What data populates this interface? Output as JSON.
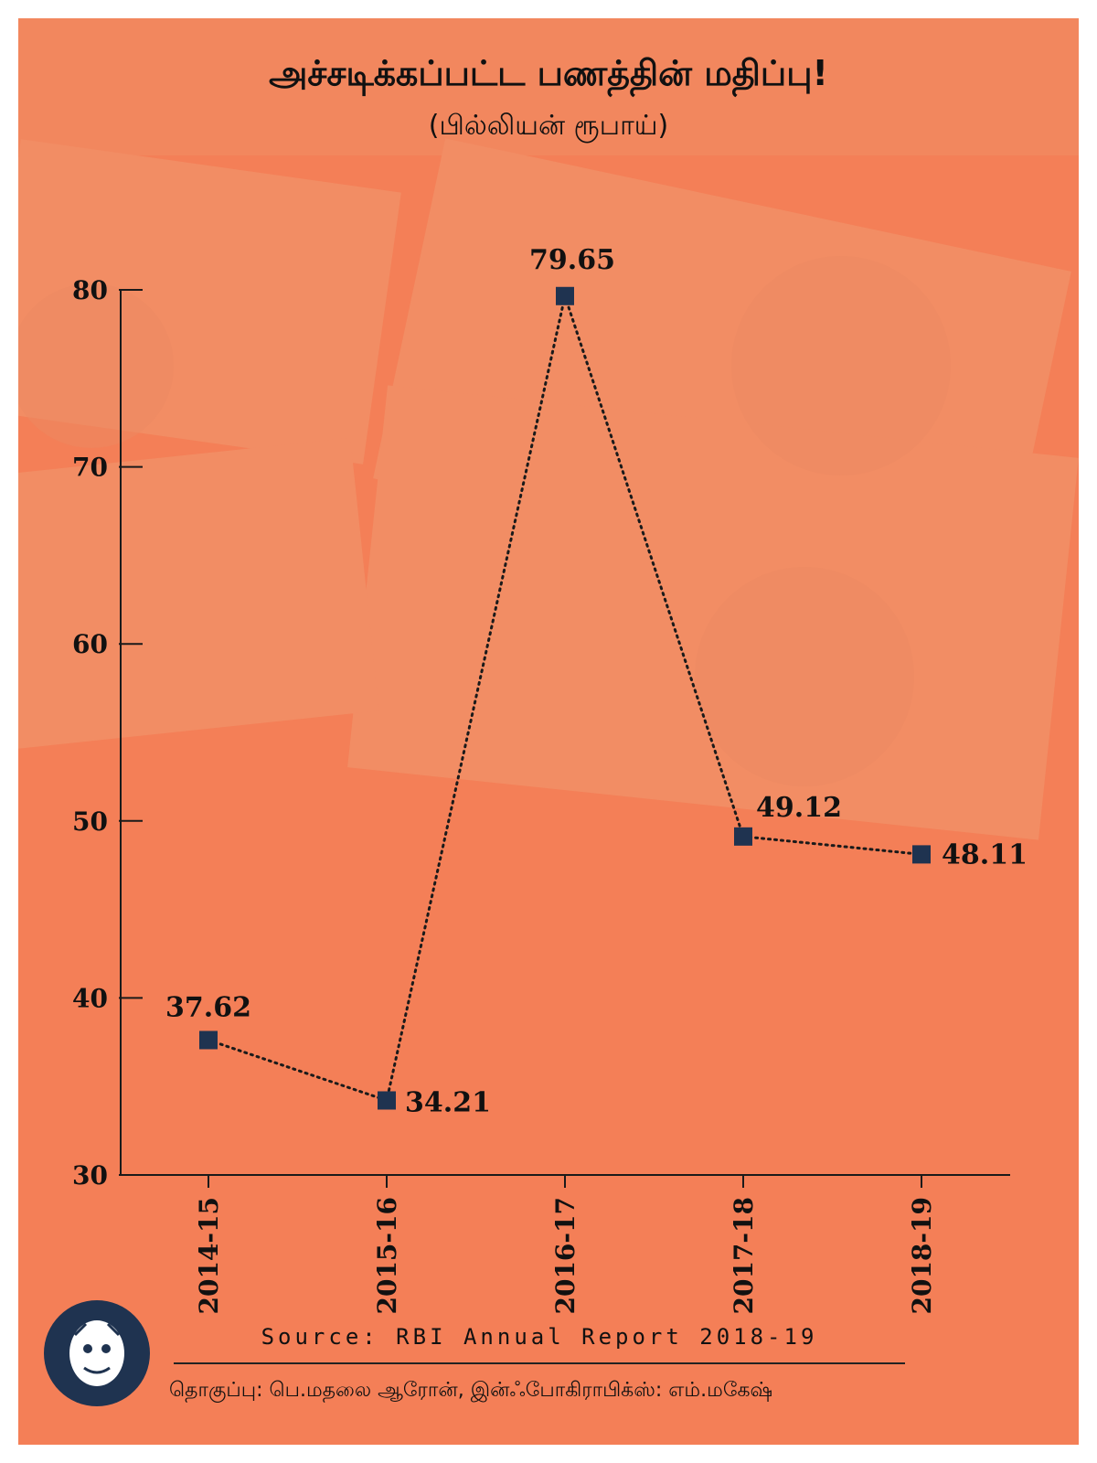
{
  "header": {
    "title": "அச்சடிக்கப்பட்ட பணத்தின் மதிப்பு!",
    "subtitle": "(பில்லியன் ரூபாய்)"
  },
  "footer": {
    "source": "Source: RBI Annual Report 2018-19",
    "credits": "தொகுப்பு: பெ.மதலை ஆரோன், இன்ஃபோகிராபிக்ஸ்: எம்.மகேஷ்"
  },
  "colors": {
    "background": "#f47f57",
    "marker": "#1f3350",
    "axis": "#1a1a1a",
    "logo": "#1f3350"
  },
  "chart_data": {
    "type": "line",
    "categories": [
      "2014-15",
      "2015-16",
      "2016-17",
      "2017-18",
      "2018-19"
    ],
    "values": [
      37.62,
      34.21,
      79.65,
      49.12,
      48.11
    ],
    "data_labels": [
      "37.62",
      "34.21",
      "79.65",
      "49.12",
      "48.11"
    ],
    "yticks": [
      30,
      40,
      50,
      60,
      70,
      80
    ],
    "ylim": [
      30,
      80
    ],
    "line_style": "dotted",
    "marker": "square",
    "grid": false
  }
}
